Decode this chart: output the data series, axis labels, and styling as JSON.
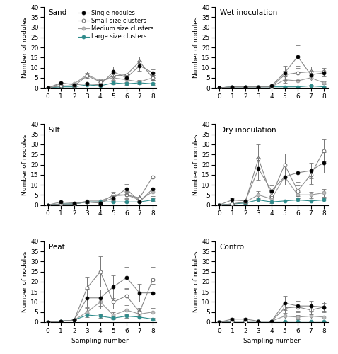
{
  "x": [
    0,
    1,
    2,
    3,
    4,
    5,
    6,
    7,
    8
  ],
  "panels": [
    {
      "title": "Sand",
      "row": 0,
      "col": 0,
      "series": {
        "single": {
          "y": [
            0,
            2.5,
            1.5,
            2.0,
            1.5,
            8.0,
            5.0,
            11.0,
            7.5
          ],
          "se": [
            0,
            0.5,
            0.4,
            0.5,
            0.4,
            2.5,
            1.5,
            2.5,
            1.5
          ]
        },
        "small": {
          "y": [
            0,
            1.0,
            1.0,
            6.0,
            3.0,
            6.0,
            6.5,
            13.0,
            5.0
          ],
          "se": [
            0,
            0.4,
            0.4,
            1.5,
            0.8,
            1.5,
            1.5,
            2.5,
            1.2
          ]
        },
        "medium": {
          "y": [
            0,
            2.0,
            2.0,
            6.5,
            3.5,
            5.0,
            4.0,
            3.0,
            5.0
          ],
          "se": [
            0,
            0.5,
            0.5,
            1.5,
            0.8,
            1.2,
            1.0,
            0.8,
            1.2
          ]
        },
        "large": {
          "y": [
            0,
            0.5,
            0.5,
            1.5,
            1.0,
            2.5,
            2.0,
            2.5,
            2.0
          ],
          "se": [
            0,
            0.2,
            0.2,
            0.5,
            0.3,
            0.7,
            0.5,
            0.7,
            0.5
          ]
        }
      }
    },
    {
      "title": "Wet inoculation",
      "row": 0,
      "col": 1,
      "series": {
        "single": {
          "y": [
            0,
            0.5,
            0.5,
            0.5,
            1.0,
            7.5,
            15.5,
            6.5,
            7.5
          ],
          "se": [
            0,
            0.2,
            0.2,
            0.2,
            0.3,
            3.5,
            5.5,
            2.0,
            2.0
          ]
        },
        "small": {
          "y": [
            0,
            0.5,
            0.5,
            0.5,
            0.5,
            6.5,
            7.5,
            8.0,
            8.0
          ],
          "se": [
            0,
            0.2,
            0.2,
            0.2,
            0.2,
            2.0,
            3.5,
            2.5,
            2.0
          ]
        },
        "medium": {
          "y": [
            0,
            0.5,
            0.5,
            0.5,
            0.5,
            4.0,
            3.5,
            5.0,
            2.5
          ],
          "se": [
            0,
            0.2,
            0.2,
            0.2,
            0.2,
            1.5,
            1.2,
            1.5,
            0.8
          ]
        },
        "large": {
          "y": [
            0,
            0.5,
            0.5,
            0.5,
            0.5,
            0.5,
            0.5,
            1.0,
            0.5
          ],
          "se": [
            0,
            0.1,
            0.1,
            0.1,
            0.1,
            0.2,
            0.2,
            0.4,
            0.2
          ]
        }
      }
    },
    {
      "title": "Silt",
      "row": 1,
      "col": 0,
      "series": {
        "single": {
          "y": [
            0,
            1.5,
            1.0,
            1.5,
            1.0,
            3.5,
            8.0,
            1.5,
            8.0
          ],
          "se": [
            0,
            0.4,
            0.3,
            0.4,
            0.3,
            1.2,
            2.5,
            0.4,
            2.0
          ]
        },
        "small": {
          "y": [
            0,
            0.5,
            0.5,
            1.5,
            1.0,
            5.0,
            5.0,
            3.5,
            14.0
          ],
          "se": [
            0,
            0.2,
            0.2,
            0.5,
            0.3,
            1.5,
            2.0,
            1.5,
            4.0
          ]
        },
        "medium": {
          "y": [
            0,
            0.5,
            0.5,
            2.0,
            2.0,
            4.5,
            5.0,
            2.5,
            6.5
          ],
          "se": [
            0,
            0.2,
            0.2,
            0.6,
            0.5,
            1.5,
            1.5,
            0.8,
            2.0
          ]
        },
        "large": {
          "y": [
            0,
            0.5,
            0.5,
            1.5,
            1.5,
            1.5,
            1.5,
            1.5,
            2.5
          ],
          "se": [
            0,
            0.2,
            0.2,
            0.5,
            0.5,
            0.4,
            0.4,
            0.4,
            0.7
          ]
        }
      }
    },
    {
      "title": "Dry inoculation",
      "row": 1,
      "col": 1,
      "series": {
        "single": {
          "y": [
            0,
            2.5,
            2.0,
            18.0,
            7.0,
            14.0,
            16.0,
            17.0,
            21.0
          ],
          "se": [
            0,
            0.8,
            0.5,
            5.5,
            2.5,
            4.0,
            4.5,
            4.0,
            5.0
          ]
        },
        "small": {
          "y": [
            0,
            0.5,
            1.5,
            23.0,
            4.5,
            20.0,
            7.0,
            15.0,
            27.0
          ],
          "se": [
            0,
            0.2,
            0.5,
            7.0,
            2.0,
            5.5,
            2.5,
            4.5,
            5.5
          ]
        },
        "medium": {
          "y": [
            0,
            0.5,
            1.5,
            5.0,
            3.0,
            14.0,
            5.0,
            5.0,
            6.0
          ],
          "se": [
            0,
            0.2,
            0.5,
            2.0,
            1.2,
            4.0,
            1.5,
            1.5,
            2.0
          ]
        },
        "large": {
          "y": [
            0,
            0.5,
            1.0,
            2.5,
            1.5,
            2.0,
            2.5,
            2.0,
            2.5
          ],
          "se": [
            0,
            0.2,
            0.3,
            0.8,
            0.5,
            0.5,
            0.8,
            0.5,
            0.8
          ]
        }
      }
    },
    {
      "title": "Peat",
      "row": 2,
      "col": 0,
      "series": {
        "single": {
          "y": [
            0,
            0.5,
            1.0,
            12.0,
            12.0,
            17.5,
            22.0,
            14.5,
            14.5
          ],
          "se": [
            0,
            0.2,
            0.3,
            4.5,
            4.0,
            5.5,
            5.5,
            4.5,
            4.5
          ]
        },
        "small": {
          "y": [
            0,
            0.5,
            1.0,
            17.0,
            25.0,
            10.0,
            13.0,
            5.0,
            21.0
          ],
          "se": [
            0,
            0.2,
            0.3,
            5.5,
            7.5,
            3.5,
            4.0,
            2.0,
            6.5
          ]
        },
        "medium": {
          "y": [
            0,
            0.5,
            1.0,
            5.0,
            10.0,
            3.5,
            6.0,
            4.0,
            5.0
          ],
          "se": [
            0,
            0.2,
            0.3,
            2.0,
            3.5,
            1.5,
            2.5,
            1.5,
            2.0
          ]
        },
        "large": {
          "y": [
            0,
            0.5,
            1.0,
            3.5,
            3.0,
            2.0,
            3.0,
            2.5,
            1.5
          ],
          "se": [
            0,
            0.2,
            0.3,
            1.2,
            1.0,
            0.7,
            1.0,
            0.8,
            0.5
          ]
        }
      }
    },
    {
      "title": "Control",
      "row": 2,
      "col": 1,
      "series": {
        "single": {
          "y": [
            0,
            1.5,
            1.5,
            0.5,
            0.5,
            9.5,
            8.0,
            8.0,
            7.5
          ],
          "se": [
            0,
            0.5,
            0.5,
            0.2,
            0.2,
            3.5,
            2.5,
            2.5,
            2.0
          ]
        },
        "small": {
          "y": [
            0,
            0.5,
            0.5,
            0.5,
            0.5,
            7.0,
            7.5,
            6.0,
            7.5
          ],
          "se": [
            0,
            0.2,
            0.2,
            0.2,
            0.2,
            2.5,
            2.5,
            2.0,
            2.5
          ]
        },
        "medium": {
          "y": [
            0,
            0.5,
            0.5,
            0.5,
            0.5,
            3.0,
            2.5,
            3.0,
            2.5
          ],
          "se": [
            0,
            0.2,
            0.2,
            0.2,
            0.2,
            1.2,
            1.0,
            1.2,
            0.8
          ]
        },
        "large": {
          "y": [
            0,
            0.5,
            0.5,
            0.5,
            0.5,
            0.5,
            0.5,
            0.5,
            0.5
          ],
          "se": [
            0,
            0.1,
            0.1,
            0.1,
            0.1,
            0.2,
            0.2,
            0.2,
            0.2
          ]
        }
      }
    }
  ],
  "colors": {
    "single": "#000000",
    "small": "#ffffff",
    "medium": "#bbbbbb",
    "large": "#2e8b8b"
  },
  "line_colors": {
    "single": "#888888",
    "small": "#888888",
    "medium": "#999999",
    "large": "#2e8b8b"
  },
  "ylim": [
    0,
    40
  ],
  "yticks": [
    0,
    5,
    10,
    15,
    20,
    25,
    30,
    35,
    40
  ],
  "xticks": [
    0,
    1,
    2,
    3,
    4,
    5,
    6,
    7,
    8
  ],
  "ylabel": "Number of nodules",
  "xlabel": "Sampling number",
  "legend_labels": [
    "Single nodules",
    "Small size clusters",
    "Medium size clusters",
    "Large size clusters"
  ],
  "legend_keys": [
    "single",
    "small",
    "medium",
    "large"
  ],
  "bottom_row_xlabel": [
    2
  ]
}
